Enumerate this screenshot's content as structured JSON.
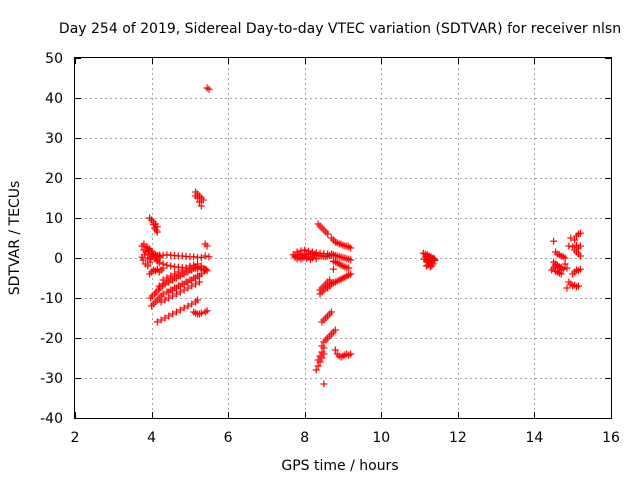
{
  "chart_data": {
    "type": "scatter",
    "title": "Day 254 of 2019, Sidereal Day-to-day VTEC variation (SDTVAR) for receiver nlsn",
    "xlabel": "GPS time / hours",
    "ylabel": "SDTVAR / TECUs",
    "xlim": [
      2,
      16
    ],
    "ylim": [
      -40,
      50
    ],
    "xticks": [
      2,
      4,
      6,
      8,
      10,
      12,
      14,
      16
    ],
    "yticks": [
      -40,
      -30,
      -20,
      -10,
      0,
      10,
      20,
      30,
      40,
      50
    ],
    "grid": true,
    "marker": "+",
    "color": "#ff0000",
    "series": [
      {
        "name": "SDTVAR",
        "x": [
          3.75,
          3.8,
          3.85,
          3.9,
          3.95,
          4.0,
          3.78,
          3.82,
          3.9,
          3.96,
          4.02,
          3.8,
          3.86,
          3.92,
          3.98,
          3.75,
          3.84,
          3.9,
          3.95,
          4.0,
          4.02,
          4.05,
          4.1,
          4.15,
          4.2,
          4.22,
          3.95,
          4.0,
          4.05,
          4.1,
          4.15,
          4.05,
          4.08,
          4.12,
          4.15,
          3.95,
          4.0,
          4.05,
          4.1,
          4.15,
          4.2,
          4.25,
          4.3,
          4.1,
          4.12,
          4.15,
          4.2,
          4.3,
          4.4,
          4.5,
          4.6,
          4.7,
          4.8,
          4.9,
          5.0,
          5.1,
          5.2,
          5.3,
          4.15,
          4.2,
          4.3,
          4.4,
          4.5,
          4.6,
          4.7,
          4.8,
          4.9,
          5.0,
          5.1,
          5.2,
          5.3,
          4.3,
          4.4,
          4.5,
          4.6,
          4.7,
          4.8,
          4.9,
          5.0,
          5.1,
          5.2,
          5.3,
          5.4,
          4.2,
          4.3,
          4.4,
          4.5,
          4.6,
          4.7,
          4.8,
          4.9,
          5.0,
          5.1,
          5.2,
          5.3,
          4.45,
          4.55,
          4.65,
          4.75,
          4.85,
          4.95,
          5.05,
          5.15,
          5.25,
          4.25,
          4.35,
          4.45,
          4.55,
          4.65,
          4.75,
          4.85,
          4.95,
          5.05,
          5.15,
          5.25,
          4.0,
          4.05,
          4.1,
          4.15,
          4.2,
          4.25,
          4.3,
          4.4,
          4.5,
          4.6,
          4.7,
          4.8,
          4.9,
          5.0,
          5.1,
          5.2,
          5.3,
          3.98,
          4.02,
          4.08,
          4.12,
          4.18,
          4.22,
          4.28,
          4.35,
          4.45,
          4.55,
          4.65,
          4.75,
          4.85,
          4.95,
          5.05,
          5.15,
          5.2,
          4.15,
          4.25,
          4.35,
          4.45,
          4.55,
          4.65,
          4.75,
          4.85,
          4.95,
          5.05,
          5.15,
          5.2,
          5.15,
          5.2,
          5.25,
          5.3,
          5.35,
          5.15,
          5.2,
          5.25,
          5.3,
          5.1,
          5.15,
          5.2,
          5.25,
          5.3,
          5.4,
          5.45,
          5.4,
          5.45,
          5.4,
          5.5,
          5.38,
          5.42,
          5.45,
          5.35,
          5.5,
          5.45,
          7.7,
          7.75,
          7.8,
          7.85,
          7.9,
          7.95,
          8.0,
          8.05,
          8.1,
          8.15,
          8.2,
          8.25,
          8.3,
          8.35,
          8.4,
          8.45,
          8.5,
          8.55,
          8.6,
          8.65,
          8.7,
          7.75,
          7.8,
          7.85,
          7.9,
          7.95,
          8.0,
          8.05,
          8.1,
          8.15,
          8.2,
          8.25,
          8.3,
          7.8,
          7.9,
          8.0,
          8.1,
          8.2,
          8.3,
          8.4,
          8.5,
          8.6,
          8.7,
          8.35,
          8.4,
          8.45,
          8.5,
          8.55,
          8.6,
          8.4,
          8.45,
          8.5,
          8.55,
          8.6,
          8.65,
          8.7,
          8.75,
          8.8,
          8.85,
          8.9,
          8.95,
          9.0,
          9.05,
          9.1,
          9.15,
          9.2,
          8.7,
          8.75,
          8.8,
          8.85,
          8.9,
          8.95,
          9.0,
          9.05,
          9.1,
          9.15,
          9.2,
          8.75,
          8.8,
          8.85,
          8.9,
          8.95,
          9.0,
          9.05,
          9.1,
          9.15,
          8.4,
          8.45,
          8.5,
          8.55,
          8.6,
          8.65,
          8.45,
          8.5,
          8.55,
          8.6,
          8.65,
          8.7,
          8.6,
          8.65,
          8.7,
          8.75,
          8.8,
          8.85,
          8.9,
          8.95,
          9.0,
          9.05,
          9.1,
          9.15,
          9.2,
          8.45,
          8.5,
          8.55,
          8.6,
          8.65,
          8.7,
          8.75,
          8.8,
          8.3,
          8.35,
          8.4,
          8.45,
          8.5,
          8.35,
          8.4,
          8.45,
          8.5,
          8.8,
          8.85,
          8.9,
          8.95,
          9.0,
          9.05,
          9.1,
          9.15,
          9.2,
          8.5,
          8.75,
          11.1,
          11.15,
          11.2,
          11.25,
          11.3,
          11.35,
          11.4,
          11.12,
          11.18,
          11.22,
          11.28,
          11.32,
          11.38,
          11.15,
          11.2,
          11.25,
          11.3,
          11.35,
          11.18,
          11.22,
          11.28,
          11.32,
          11.2,
          11.25,
          11.3,
          11.35,
          11.4,
          11.25,
          11.3,
          14.5,
          14.55,
          14.6,
          14.65,
          14.7,
          14.75,
          14.8,
          14.5,
          14.55,
          14.6,
          14.65,
          14.7,
          14.75,
          14.5,
          14.55,
          14.6,
          14.65,
          14.7,
          14.45,
          14.55,
          14.6,
          14.65,
          14.7,
          14.85,
          14.9,
          14.95,
          15.0,
          15.05,
          15.1,
          15.15,
          14.9,
          15.0,
          15.1,
          15.15,
          15.2,
          14.95,
          15.05,
          15.1,
          15.15,
          15.2,
          15.05,
          15.1,
          15.15,
          15.2,
          14.8,
          14.85,
          15.0,
          15.05,
          15.1,
          15.15,
          15.2
        ],
        "y": [
          3,
          2,
          1.5,
          2.5,
          1,
          0.5,
          -0.5,
          0.8,
          0,
          -1,
          1.2,
          3.5,
          2.8,
          1.8,
          -0.3,
          0.2,
          -1.5,
          -2,
          2.2,
          1.7,
          0.3,
          0.8,
          0,
          -0.5,
          0.2,
          0.5,
          10,
          9.5,
          9,
          8.5,
          7.8,
          8.3,
          7.5,
          7,
          6.5,
          -4,
          -3.5,
          -3,
          -3.2,
          -2.8,
          -3.5,
          -3,
          -2.5,
          0.8,
          0.5,
          0.6,
          0.7,
          0.7,
          0.8,
          0.7,
          0.6,
          0.5,
          0.5,
          0.4,
          0.3,
          0.3,
          0.2,
          0.1,
          -0.8,
          -1.2,
          -1.5,
          -1.8,
          -2,
          -2.2,
          -2.3,
          -2.4,
          -2.5,
          -2.5,
          -2.6,
          -2.6,
          -2.7,
          -5.5,
          -5,
          -4.5,
          -4,
          -3.5,
          -3,
          -2.5,
          -2,
          -1.8,
          -1.5,
          -2,
          -3,
          -7,
          -6.5,
          -6,
          -5.5,
          -5,
          -4.5,
          -4,
          -3.5,
          -3,
          -2.5,
          -2.5,
          -2.8,
          -8.5,
          -8,
          -7.5,
          -7,
          -6.5,
          -6,
          -5.5,
          -5,
          -4.5,
          -11,
          -10.5,
          -10,
          -9.5,
          -9,
          -8.5,
          -8,
          -7.5,
          -7,
          -6.5,
          -6,
          -12,
          -11.5,
          -11,
          -10.5,
          -10,
          -9.5,
          -9,
          -8.5,
          -8,
          -7.5,
          -7,
          -6.5,
          -6,
          -5.5,
          -5,
          -4.5,
          -4,
          -10,
          -9.5,
          -9,
          -8.5,
          -8,
          -7.5,
          -7,
          -6.5,
          -6,
          -5.5,
          -5,
          -4.5,
          -4,
          -3.5,
          -3,
          -2.5,
          -2.2,
          -16,
          -15.5,
          -15,
          -14.5,
          -14,
          -13.5,
          -13,
          -12.5,
          -12,
          -11.5,
          -11,
          -10.5,
          16.5,
          16,
          15.5,
          15,
          14.5,
          15.5,
          15,
          14,
          13,
          -13.5,
          -13.8,
          -14,
          -14,
          -13.8,
          -13.5,
          -13.2,
          3.5,
          3,
          0.5,
          0.3,
          -3,
          -2.8,
          -3.2,
          -3,
          42.2,
          42.5,
          0.8,
          0.5,
          0.9,
          0.7,
          1,
          0.6,
          0.8,
          0.9,
          1,
          1.1,
          1.2,
          1,
          0.8,
          0.7,
          0.6,
          0.5,
          0.4,
          0.3,
          0.5,
          0.6,
          0.7,
          0.2,
          -0.2,
          0.1,
          -0.3,
          0,
          0.3,
          -0.1,
          0.2,
          -0.4,
          0,
          0.5,
          -0.2,
          1.5,
          1.8,
          2,
          1.7,
          1.5,
          1.3,
          1.2,
          1.1,
          1,
          0.9,
          8.5,
          8,
          7.5,
          7,
          6.5,
          6,
          -8,
          -7.5,
          -7,
          -6.5,
          -6,
          -5.5,
          5,
          4.5,
          4,
          3.8,
          3.5,
          3.5,
          3.2,
          3,
          3,
          2.8,
          2.5,
          1,
          0.8,
          0.6,
          0.5,
          0.3,
          0.2,
          0.1,
          0,
          -0.2,
          -0.3,
          -0.5,
          -0.8,
          -1,
          -1.2,
          -1.5,
          -1.8,
          -2,
          -2.2,
          -2.5,
          -2.5,
          -9,
          -8.5,
          -8,
          -7.5,
          -7,
          -6.5,
          -16,
          -15.5,
          -15,
          -14.5,
          -14,
          -13.5,
          -7.5,
          -7,
          -6.5,
          -6.2,
          -6,
          -5.8,
          -5.5,
          -5.3,
          -5,
          -4.8,
          -4.5,
          -4.3,
          -4,
          -22,
          -21,
          -20.5,
          -20,
          -19.5,
          -19,
          -18.5,
          -18,
          -28,
          -27,
          -26,
          -25,
          -24,
          -25.5,
          -24.5,
          -23.5,
          -22.5,
          -23,
          -24,
          -24.5,
          -24.8,
          -24.5,
          -24.2,
          -24,
          -24.3,
          -24,
          -31.5,
          -2.8,
          1.2,
          1,
          0.8,
          0.5,
          0.3,
          0,
          -0.5,
          -0.3,
          -0.8,
          -1,
          -1.2,
          -1.5,
          -0.2,
          0.2,
          -0.5,
          -0.8,
          -1,
          -1.5,
          -2,
          -1.8,
          -2.2,
          -2,
          0.6,
          0.3,
          0,
          -0.3,
          -0.6,
          -0.8,
          -1,
          4.2,
          1.5,
          1,
          0.8,
          0.5,
          0.3,
          0,
          -1,
          -1.5,
          -2,
          -2.5,
          -3,
          -2.8,
          -2.5,
          -2,
          -1.8,
          -2.2,
          -2.4,
          -3,
          -3.3,
          -3.5,
          -3.8,
          -4,
          -7.5,
          -6,
          -6.5,
          -7,
          -6.8,
          -7.2,
          -7,
          3,
          2.8,
          3.2,
          2.5,
          3,
          5,
          4.5,
          5.5,
          6,
          6.2,
          2,
          1.5,
          1,
          0.5,
          -1.5,
          -2.5,
          -4,
          -3.5,
          -3,
          -3.2,
          -2.8
        ]
      }
    ]
  }
}
